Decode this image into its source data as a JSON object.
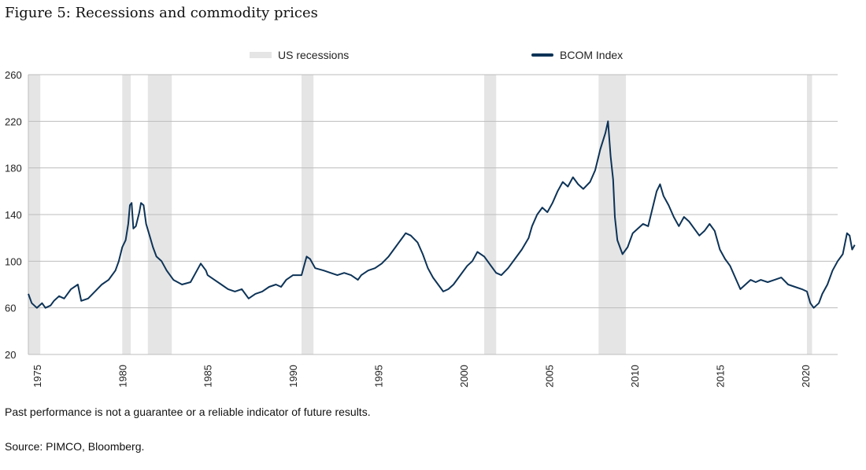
{
  "page": {
    "title": "Figure 5: Recessions and commodity prices",
    "footnote": "Past performance is not a guarantee or a reliable indicator of future results.",
    "source": "Source: PIMCO, Bloomberg."
  },
  "chart_data": {
    "type": "line",
    "title": "Figure 5: Recessions and commodity prices",
    "xlabel": "",
    "ylabel": "",
    "xlim": [
      1974.5,
      2021.9
    ],
    "ylim": [
      20,
      260
    ],
    "y_ticks": [
      20,
      60,
      100,
      140,
      180,
      220,
      260
    ],
    "x_ticks": [
      1975,
      1980,
      1985,
      1990,
      1995,
      2000,
      2005,
      2010,
      2015,
      2020
    ],
    "grid": "horizontal",
    "legend_position": "top-center",
    "colors": {
      "line": "#0d3357",
      "recession": "#e5e5e5",
      "grid": "#bdbdbd"
    },
    "recessions": {
      "name": "US recessions",
      "periods": [
        [
          1974.5,
          1975.2
        ],
        [
          1980.0,
          1980.5
        ],
        [
          1981.5,
          1982.9
        ],
        [
          1990.5,
          1991.2
        ],
        [
          2001.2,
          2001.9
        ],
        [
          2007.9,
          2009.5
        ],
        [
          2020.1,
          2020.4
        ]
      ]
    },
    "series": [
      {
        "name": "BCOM Index",
        "points": [
          [
            1974.5,
            72
          ],
          [
            1974.7,
            64
          ],
          [
            1975.0,
            60
          ],
          [
            1975.3,
            64
          ],
          [
            1975.5,
            60
          ],
          [
            1975.8,
            62
          ],
          [
            1976.0,
            66
          ],
          [
            1976.3,
            70
          ],
          [
            1976.6,
            68
          ],
          [
            1977.0,
            76
          ],
          [
            1977.4,
            80
          ],
          [
            1977.6,
            66
          ],
          [
            1978.0,
            68
          ],
          [
            1978.4,
            74
          ],
          [
            1978.8,
            80
          ],
          [
            1979.2,
            84
          ],
          [
            1979.6,
            92
          ],
          [
            1979.8,
            100
          ],
          [
            1980.0,
            112
          ],
          [
            1980.2,
            118
          ],
          [
            1980.35,
            132
          ],
          [
            1980.45,
            148
          ],
          [
            1980.55,
            150
          ],
          [
            1980.65,
            128
          ],
          [
            1980.8,
            130
          ],
          [
            1981.0,
            142
          ],
          [
            1981.1,
            150
          ],
          [
            1981.25,
            148
          ],
          [
            1981.4,
            132
          ],
          [
            1981.6,
            122
          ],
          [
            1981.8,
            112
          ],
          [
            1982.0,
            104
          ],
          [
            1982.3,
            100
          ],
          [
            1982.6,
            92
          ],
          [
            1983.0,
            84
          ],
          [
            1983.5,
            80
          ],
          [
            1984.0,
            82
          ],
          [
            1984.3,
            90
          ],
          [
            1984.6,
            98
          ],
          [
            1984.9,
            92
          ],
          [
            1985.0,
            88
          ],
          [
            1985.4,
            84
          ],
          [
            1985.8,
            80
          ],
          [
            1986.2,
            76
          ],
          [
            1986.6,
            74
          ],
          [
            1987.0,
            76
          ],
          [
            1987.4,
            68
          ],
          [
            1987.8,
            72
          ],
          [
            1988.2,
            74
          ],
          [
            1988.6,
            78
          ],
          [
            1989.0,
            80
          ],
          [
            1989.3,
            78
          ],
          [
            1989.6,
            84
          ],
          [
            1990.0,
            88
          ],
          [
            1990.5,
            88
          ],
          [
            1990.8,
            104
          ],
          [
            1991.0,
            102
          ],
          [
            1991.3,
            94
          ],
          [
            1991.8,
            92
          ],
          [
            1992.2,
            90
          ],
          [
            1992.6,
            88
          ],
          [
            1993.0,
            90
          ],
          [
            1993.4,
            88
          ],
          [
            1993.8,
            84
          ],
          [
            1994.0,
            88
          ],
          [
            1994.4,
            92
          ],
          [
            1994.8,
            94
          ],
          [
            1995.2,
            98
          ],
          [
            1995.6,
            104
          ],
          [
            1996.0,
            112
          ],
          [
            1996.3,
            118
          ],
          [
            1996.6,
            124
          ],
          [
            1996.9,
            122
          ],
          [
            1997.3,
            116
          ],
          [
            1997.6,
            106
          ],
          [
            1997.9,
            94
          ],
          [
            1998.2,
            86
          ],
          [
            1998.5,
            80
          ],
          [
            1998.8,
            74
          ],
          [
            1999.1,
            76
          ],
          [
            1999.4,
            80
          ],
          [
            1999.8,
            88
          ],
          [
            2000.2,
            96
          ],
          [
            2000.5,
            100
          ],
          [
            2000.8,
            108
          ],
          [
            2001.2,
            104
          ],
          [
            2001.6,
            96
          ],
          [
            2001.9,
            90
          ],
          [
            2002.2,
            88
          ],
          [
            2002.6,
            94
          ],
          [
            2003.0,
            102
          ],
          [
            2003.4,
            110
          ],
          [
            2003.8,
            120
          ],
          [
            2004.0,
            130
          ],
          [
            2004.3,
            140
          ],
          [
            2004.6,
            146
          ],
          [
            2004.9,
            142
          ],
          [
            2005.2,
            150
          ],
          [
            2005.5,
            160
          ],
          [
            2005.8,
            168
          ],
          [
            2006.1,
            164
          ],
          [
            2006.4,
            172
          ],
          [
            2006.7,
            166
          ],
          [
            2007.0,
            162
          ],
          [
            2007.4,
            168
          ],
          [
            2007.7,
            178
          ],
          [
            2008.0,
            196
          ],
          [
            2008.3,
            210
          ],
          [
            2008.45,
            220
          ],
          [
            2008.6,
            190
          ],
          [
            2008.75,
            170
          ],
          [
            2008.85,
            138
          ],
          [
            2009.0,
            118
          ],
          [
            2009.3,
            106
          ],
          [
            2009.6,
            112
          ],
          [
            2009.9,
            124
          ],
          [
            2010.2,
            128
          ],
          [
            2010.5,
            132
          ],
          [
            2010.8,
            130
          ],
          [
            2011.0,
            142
          ],
          [
            2011.3,
            160
          ],
          [
            2011.5,
            166
          ],
          [
            2011.7,
            156
          ],
          [
            2012.0,
            148
          ],
          [
            2012.3,
            138
          ],
          [
            2012.6,
            130
          ],
          [
            2012.9,
            138
          ],
          [
            2013.2,
            134
          ],
          [
            2013.5,
            128
          ],
          [
            2013.8,
            122
          ],
          [
            2014.1,
            126
          ],
          [
            2014.4,
            132
          ],
          [
            2014.7,
            126
          ],
          [
            2015.0,
            110
          ],
          [
            2015.3,
            102
          ],
          [
            2015.6,
            96
          ],
          [
            2015.9,
            86
          ],
          [
            2016.2,
            76
          ],
          [
            2016.5,
            80
          ],
          [
            2016.8,
            84
          ],
          [
            2017.1,
            82
          ],
          [
            2017.4,
            84
          ],
          [
            2017.8,
            82
          ],
          [
            2018.2,
            84
          ],
          [
            2018.6,
            86
          ],
          [
            2019.0,
            80
          ],
          [
            2019.4,
            78
          ],
          [
            2019.8,
            76
          ],
          [
            2020.1,
            74
          ],
          [
            2020.3,
            64
          ],
          [
            2020.5,
            60
          ],
          [
            2020.8,
            64
          ],
          [
            2021.0,
            72
          ],
          [
            2021.3,
            80
          ],
          [
            2021.6,
            92
          ],
          [
            2021.9,
            100
          ],
          [
            2022.2,
            106
          ],
          [
            2022.45,
            124
          ],
          [
            2022.6,
            122
          ],
          [
            2022.75,
            110
          ],
          [
            2022.9,
            114
          ]
        ]
      }
    ]
  }
}
